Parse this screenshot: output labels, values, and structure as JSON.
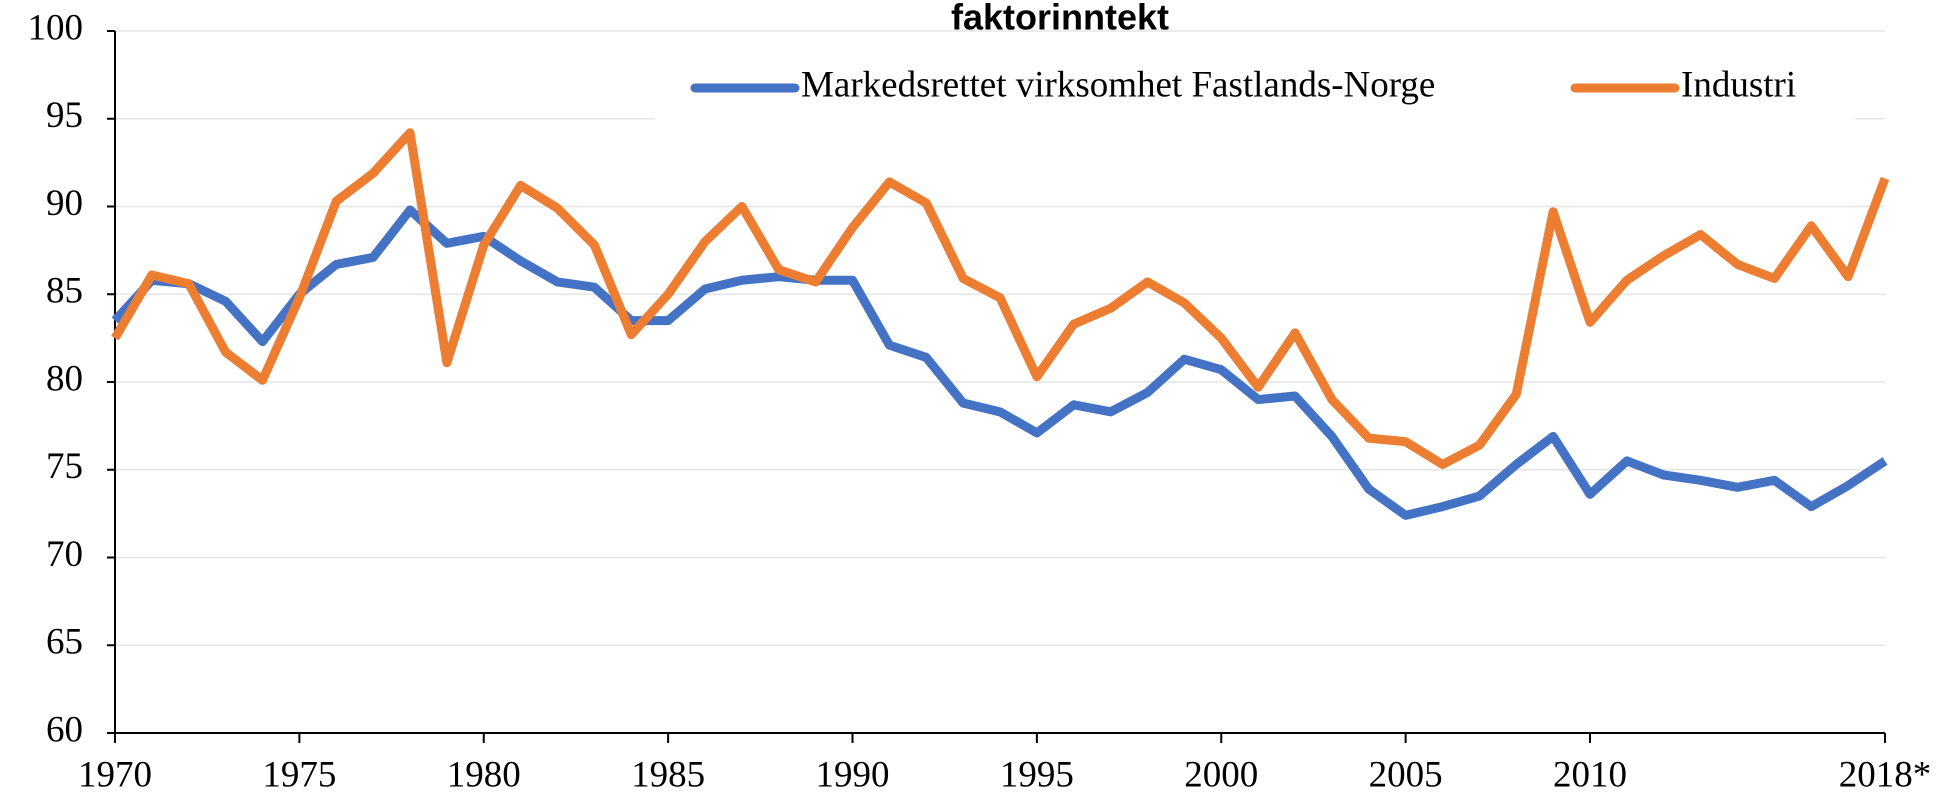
{
  "chart_data": {
    "type": "line",
    "title": "faktorinntekt",
    "x": [
      1970,
      1971,
      1972,
      1973,
      1974,
      1975,
      1976,
      1977,
      1978,
      1979,
      1980,
      1981,
      1982,
      1983,
      1984,
      1985,
      1986,
      1987,
      1988,
      1989,
      1990,
      1991,
      1992,
      1993,
      1994,
      1995,
      1996,
      1997,
      1998,
      1999,
      2000,
      2001,
      2002,
      2003,
      2004,
      2005,
      2006,
      2007,
      2008,
      2009,
      2010,
      2011,
      2012,
      2013,
      2014,
      2015,
      2016,
      2017,
      2018
    ],
    "series": [
      {
        "name": "Markedsrettet virksomhet Fastlands-Norge",
        "color": "#4472c4",
        "values": [
          83.5,
          85.8,
          85.6,
          84.6,
          82.3,
          85.0,
          86.7,
          87.1,
          89.8,
          87.9,
          88.3,
          86.9,
          85.7,
          85.4,
          83.5,
          83.5,
          85.3,
          85.8,
          86.0,
          85.8,
          85.8,
          82.1,
          81.4,
          78.8,
          78.3,
          77.1,
          78.7,
          78.3,
          79.4,
          81.3,
          80.7,
          79.0,
          79.2,
          76.9,
          73.9,
          72.4,
          72.9,
          73.5,
          75.3,
          76.9,
          73.6,
          75.5,
          74.7,
          74.4,
          74.0,
          74.4,
          72.9,
          74.1,
          75.5
        ]
      },
      {
        "name": "Industri",
        "color": "#ed7d31",
        "values": [
          82.5,
          86.1,
          85.6,
          81.7,
          80.1,
          84.8,
          90.3,
          91.9,
          94.2,
          81.1,
          87.8,
          91.2,
          89.9,
          87.8,
          82.7,
          85.0,
          88.0,
          90.0,
          86.4,
          85.7,
          88.8,
          91.4,
          90.2,
          85.9,
          84.8,
          80.3,
          83.3,
          84.2,
          85.7,
          84.5,
          82.5,
          79.7,
          82.8,
          79.0,
          76.8,
          76.6,
          75.3,
          76.4,
          79.3,
          89.7,
          83.4,
          85.8,
          87.2,
          88.4,
          86.7,
          85.9,
          88.9,
          86.0,
          91.6
        ]
      }
    ],
    "xlim": [
      1970,
      2018
    ],
    "xticks": [
      1970,
      1975,
      1980,
      1985,
      1990,
      1995,
      2000,
      2005,
      2010,
      {
        "value": 2018,
        "label": "2018*"
      }
    ],
    "ylim": [
      60,
      100
    ],
    "yticks": [
      60,
      65,
      70,
      75,
      80,
      85,
      90,
      95,
      100
    ],
    "grid": true
  }
}
